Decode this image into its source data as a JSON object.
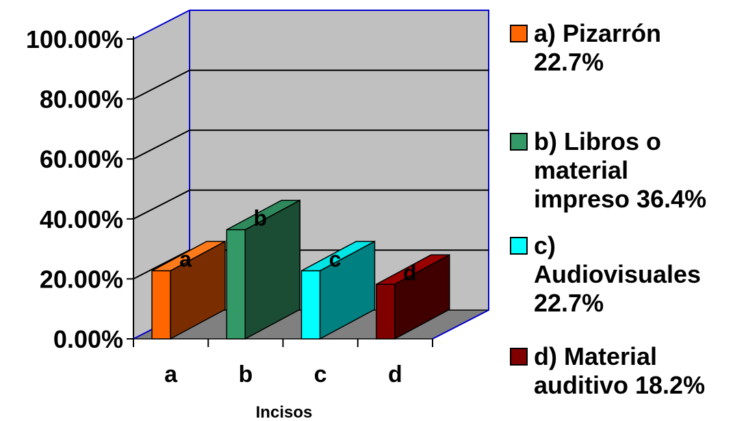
{
  "chart_data": {
    "type": "bar",
    "categories": [
      "a",
      "b",
      "c",
      "d"
    ],
    "values": [
      0.227,
      0.364,
      0.227,
      0.182
    ],
    "data_labels": [
      "a",
      "b",
      "c",
      "d"
    ],
    "title": "",
    "xlabel": "Incisos",
    "ylabel": "",
    "ylim": [
      0,
      1
    ],
    "y_ticks": [
      "0.00%",
      "20.00%",
      "40.00%",
      "60.00%",
      "80.00%",
      "100.00%"
    ],
    "grid": true,
    "style": "3d",
    "legend_position": "right",
    "colors": {
      "a": {
        "front": "#FF6600",
        "side": "#7A2E00",
        "top": "#FF7A1A"
      },
      "b": {
        "front": "#339966",
        "side": "#1A4D33",
        "top": "#2E8A5C"
      },
      "c": {
        "front": "#00FFFF",
        "side": "#008080",
        "top": "#00E6E6"
      },
      "d": {
        "front": "#800000",
        "side": "#400000",
        "top": "#990000"
      },
      "wall": "#C0C0C0",
      "floor": "#808080",
      "wall_edge": "#0000CC"
    },
    "legend": [
      {
        "color": "#FF6600",
        "label": "a) Pizarrón\n22.7%"
      },
      {
        "color": "#339966",
        "label": "b) Libros o\nmaterial\nimpreso 36.4%"
      },
      {
        "color": "#00FFFF",
        "label": "c)\nAudiovisuales\n22.7%"
      },
      {
        "color": "#800000",
        "label": "d) Material\nauditivo 18.2%"
      }
    ]
  }
}
